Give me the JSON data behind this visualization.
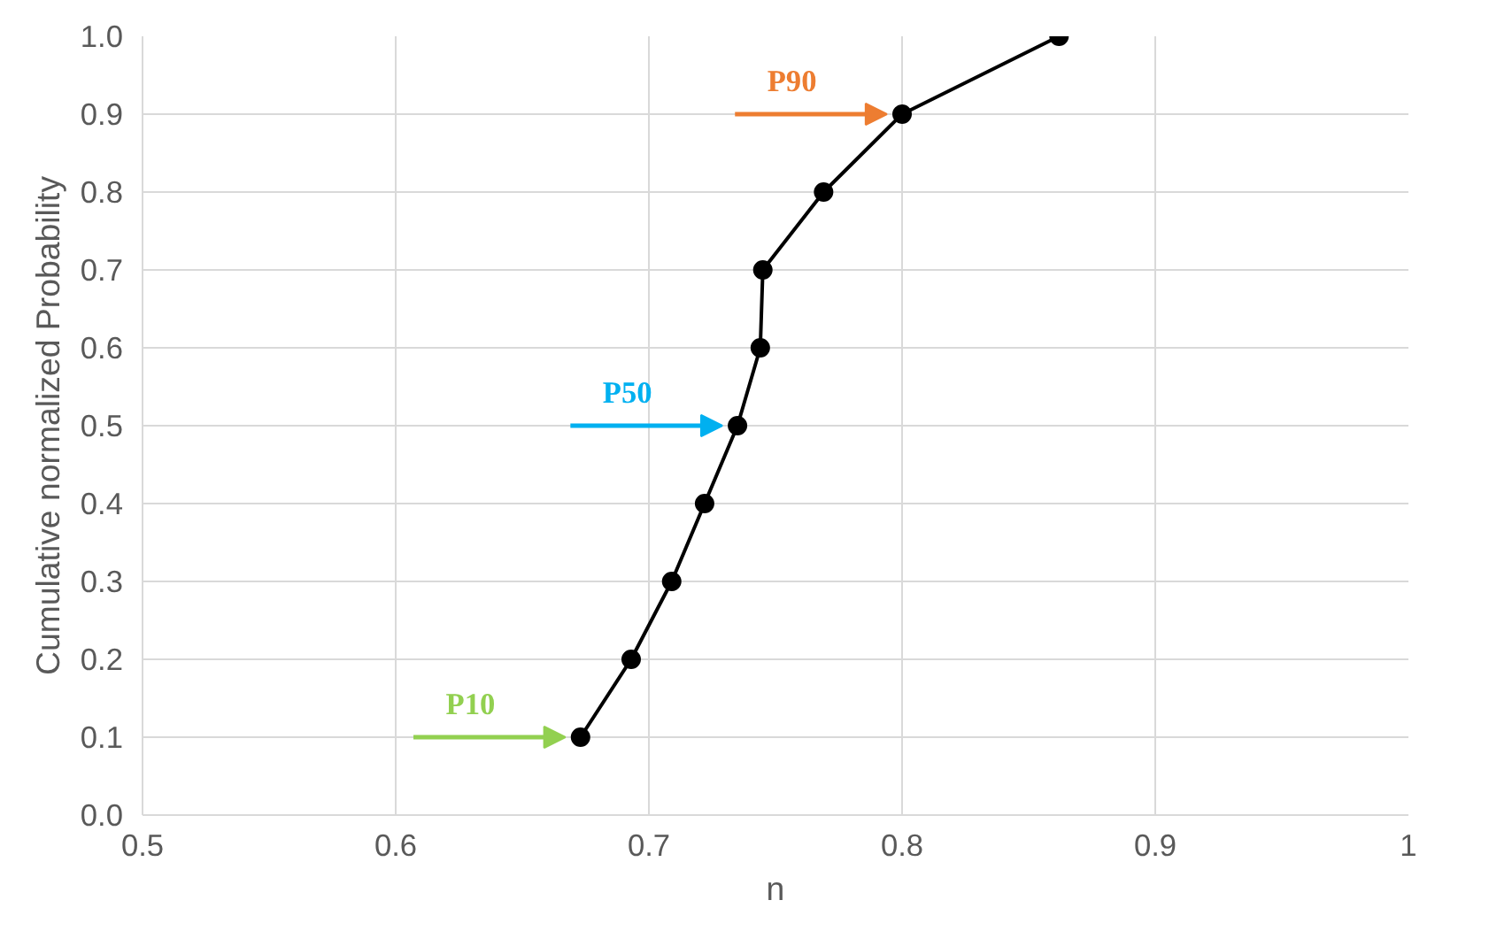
{
  "chart_data": {
    "type": "line",
    "xlabel": "n",
    "ylabel": "Cumulative normalized Probability",
    "x": [
      0.673,
      0.693,
      0.709,
      0.722,
      0.735,
      0.744,
      0.745,
      0.769,
      0.8,
      0.862
    ],
    "series": [
      {
        "color": "#000000",
        "values": [
          0.1,
          0.2,
          0.3,
          0.4,
          0.5,
          0.6,
          0.7,
          0.8,
          0.9,
          1.0
        ]
      }
    ],
    "xlim": [
      0.5,
      1
    ],
    "xticks": [
      0.5,
      0.6,
      0.7,
      0.8,
      0.9,
      1
    ],
    "ylim": [
      0,
      1
    ],
    "yticks": [
      {
        "value": 0,
        "label": "0.0"
      },
      0.1,
      0.2,
      0.3,
      0.4,
      0.5,
      0.6,
      0.7,
      0.8,
      0.9,
      {
        "value": 1,
        "label": "1.0"
      }
    ],
    "grid": true,
    "marker": "circle",
    "line_style": "solid",
    "annotations": [
      {
        "text": "P10",
        "x": 0.673,
        "y": 0.1
      },
      {
        "text": "P50",
        "x": 0.735,
        "y": 0.5
      },
      {
        "text": "P90",
        "x": 0.8,
        "y": 0.9
      }
    ]
  }
}
